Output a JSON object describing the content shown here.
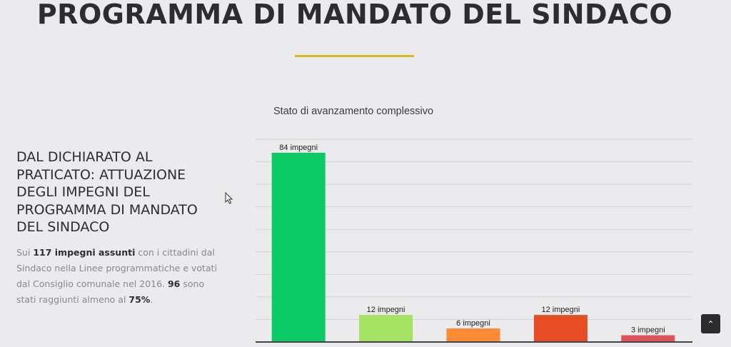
{
  "page_title": "PROGRAMMA DI MANDATO DEL SINDACO",
  "section": {
    "heading": "DAL DICHIARATO AL PRATICATO: ATTUAZIONE DEGLI IMPEGNI DEL PROGRAMMA DI MANDATO DEL SINDACO",
    "paragraph": {
      "p1": "Sui ",
      "b1": "117 impegni assunti",
      "p2": " con i cittadini dal Sindaco nella Linee programmatiche e votati dal Consiglio comunale nel 2016. ",
      "b2": "96",
      "p3": " sono stati raggiunti almeno al ",
      "b3": "75%",
      "p4": "."
    }
  },
  "chart_data": {
    "type": "bar",
    "title": "Stato di avanzamento complessivo",
    "categories": [
      "",
      "",
      "",
      "",
      ""
    ],
    "values": [
      84,
      12,
      6,
      12,
      3
    ],
    "labels": [
      "84 impegni",
      "12 impegni",
      "6 impegni",
      "12 impegni",
      "3 impegni"
    ],
    "colors": [
      "#0ccb66",
      "#a5e264",
      "#fd8a34",
      "#e64d24",
      "#dc535a"
    ],
    "ylim": [
      0,
      90
    ],
    "grid": true,
    "gridStep": 10,
    "xlabel": "",
    "ylabel": ""
  },
  "scroll_top_icon": "chevron-up-icon",
  "colors": {
    "accent": "#d8b921",
    "text": "#2e2c30"
  }
}
